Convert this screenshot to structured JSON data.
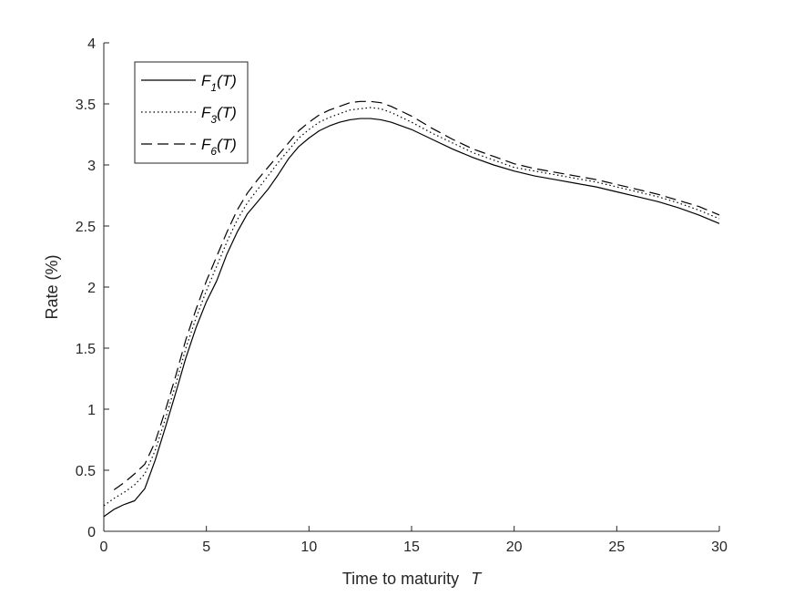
{
  "chart_data": {
    "type": "line",
    "title": "",
    "xlabel": "Time to maturity",
    "xlabel_symbol": "T",
    "ylabel": "Rate (%)",
    "xlim": [
      0,
      30
    ],
    "ylim": [
      0,
      4
    ],
    "xticks": [
      0,
      5,
      10,
      15,
      20,
      25,
      30
    ],
    "yticks": [
      0,
      0.5,
      1,
      1.5,
      2,
      2.5,
      3,
      3.5,
      4
    ],
    "xtick_labels": [
      "0",
      "5",
      "10",
      "15",
      "20",
      "25",
      "30"
    ],
    "ytick_labels": [
      "0",
      "0.5",
      "1",
      "1.5",
      "2",
      "2.5",
      "3",
      "3.5",
      "4"
    ],
    "grid": false,
    "legend_position": "top-left",
    "series": [
      {
        "name": "F1(T)",
        "legend_main": "F",
        "legend_sub": "1",
        "legend_arg": "(T)",
        "style": "solid",
        "x": [
          0,
          0.5,
          1,
          1.5,
          2,
          2.5,
          3,
          3.5,
          4,
          4.5,
          5,
          5.5,
          6,
          6.5,
          7,
          7.5,
          8,
          8.5,
          9,
          9.5,
          10,
          10.5,
          11,
          11.5,
          12,
          12.5,
          13,
          13.5,
          14,
          15,
          16,
          17,
          18,
          19,
          20,
          21,
          22,
          23,
          24,
          25,
          26,
          27,
          28,
          29,
          30
        ],
        "y": [
          0.12,
          0.18,
          0.22,
          0.25,
          0.35,
          0.58,
          0.85,
          1.13,
          1.42,
          1.67,
          1.88,
          2.05,
          2.27,
          2.45,
          2.6,
          2.7,
          2.8,
          2.92,
          3.05,
          3.15,
          3.22,
          3.28,
          3.32,
          3.35,
          3.37,
          3.38,
          3.38,
          3.37,
          3.35,
          3.29,
          3.21,
          3.13,
          3.06,
          3.0,
          2.95,
          2.91,
          2.88,
          2.85,
          2.82,
          2.78,
          2.74,
          2.7,
          2.65,
          2.59,
          2.52
        ]
      },
      {
        "name": "F3(T)",
        "legend_main": "F",
        "legend_sub": "3",
        "legend_arg": "(T)",
        "style": "dotted",
        "x": [
          0,
          0.5,
          1,
          1.5,
          2,
          2.5,
          3,
          3.5,
          4,
          4.5,
          5,
          5.5,
          6,
          6.5,
          7,
          7.5,
          8,
          8.5,
          9,
          9.5,
          10,
          10.5,
          11,
          11.5,
          12,
          12.5,
          13,
          13.5,
          14,
          15,
          16,
          17,
          18,
          19,
          20,
          21,
          22,
          23,
          24,
          25,
          26,
          27,
          28,
          29,
          30
        ],
        "y": [
          0.21,
          0.27,
          0.32,
          0.38,
          0.47,
          0.66,
          0.92,
          1.2,
          1.5,
          1.75,
          1.97,
          2.17,
          2.37,
          2.55,
          2.69,
          2.8,
          2.91,
          3.02,
          3.12,
          3.22,
          3.29,
          3.35,
          3.39,
          3.42,
          3.45,
          3.46,
          3.47,
          3.46,
          3.43,
          3.35,
          3.26,
          3.18,
          3.1,
          3.04,
          2.98,
          2.95,
          2.92,
          2.89,
          2.86,
          2.82,
          2.78,
          2.74,
          2.69,
          2.63,
          2.56
        ]
      },
      {
        "name": "F6(T)",
        "legend_main": "F",
        "legend_sub": "6",
        "legend_arg": "(T)",
        "style": "dashed",
        "x": [
          0.5,
          1,
          1.5,
          2,
          2.5,
          3,
          3.5,
          4,
          4.5,
          5,
          5.5,
          6,
          6.5,
          7,
          7.5,
          8,
          8.5,
          9,
          9.5,
          10,
          10.5,
          11,
          11.5,
          12,
          12.5,
          13,
          13.5,
          14,
          15,
          16,
          17,
          18,
          19,
          20,
          21,
          22,
          23,
          24,
          25,
          26,
          27,
          28,
          29,
          30
        ],
        "y": [
          0.34,
          0.4,
          0.47,
          0.55,
          0.73,
          0.99,
          1.27,
          1.57,
          1.82,
          2.05,
          2.25,
          2.45,
          2.63,
          2.77,
          2.88,
          2.98,
          3.08,
          3.18,
          3.28,
          3.35,
          3.41,
          3.45,
          3.48,
          3.51,
          3.52,
          3.52,
          3.51,
          3.48,
          3.4,
          3.3,
          3.21,
          3.13,
          3.07,
          3.01,
          2.97,
          2.94,
          2.91,
          2.88,
          2.84,
          2.8,
          2.76,
          2.71,
          2.66,
          2.59
        ]
      }
    ]
  }
}
